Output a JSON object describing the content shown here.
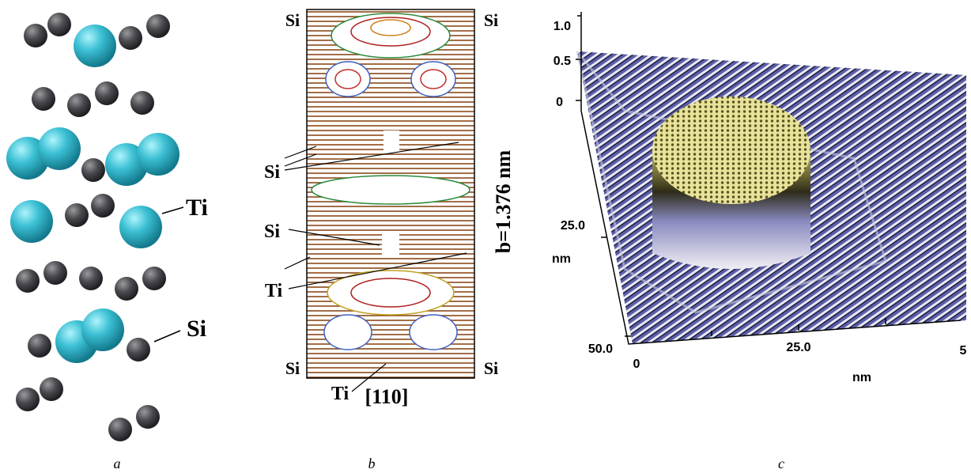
{
  "panels": [
    {
      "caption": "a",
      "labels": [
        "Ti",
        "Si"
      ]
    },
    {
      "caption": "b",
      "corner_labels": [
        "Si",
        "Si",
        "Si",
        "Si"
      ],
      "labels": [
        "Si",
        "Si",
        "Ti",
        "Ti",
        "[110]"
      ],
      "dimension": "b=1.376 nm"
    },
    {
      "caption": "c",
      "z_ticks": [
        "1.0",
        "0.5",
        "0"
      ],
      "y_ticks": [
        "25.0",
        "50.0"
      ],
      "y_unit": "nm",
      "x_ticks": [
        "0",
        "25.0",
        "5"
      ],
      "x_unit": "nm"
    }
  ]
}
